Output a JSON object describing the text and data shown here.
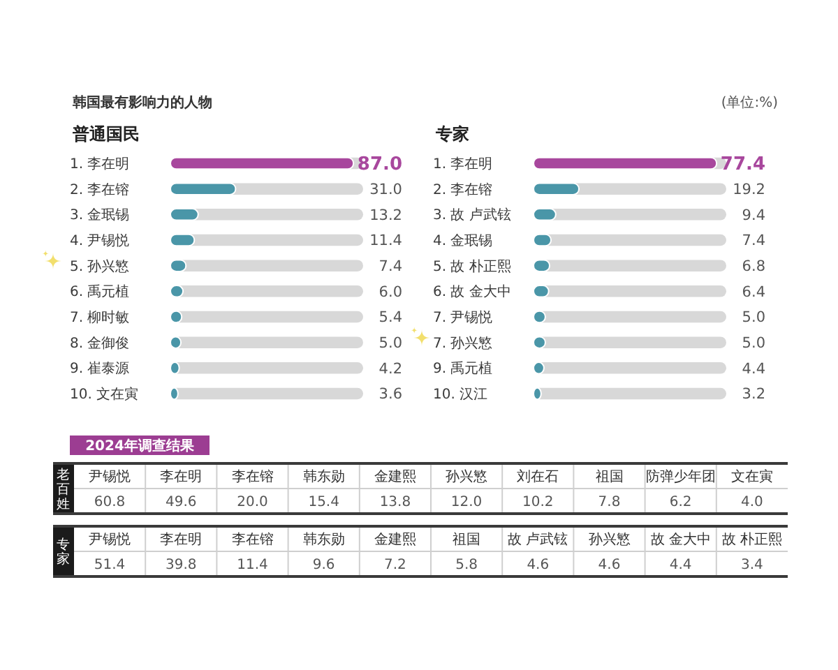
{
  "chart_data": [
    {
      "type": "bar",
      "orientation": "horizontal",
      "title": "韩国最有影响力的人物",
      "subtitle": "普通国民",
      "categories": [
        "1. 李在明",
        "2. 李在镕",
        "3. 金珉锡",
        "4. 尹锡悦",
        "5. 孙兴慜",
        "6. 禹元植",
        "7. 柳时敏",
        "8. 金御俊",
        "9. 崔泰源",
        "10. 文在寅"
      ],
      "values": [
        87.0,
        31.0,
        13.2,
        11.4,
        7.4,
        6.0,
        5.4,
        5.0,
        4.2,
        3.6
      ],
      "value_labels": [
        "87.0",
        "31.0",
        "13.2",
        "11.4",
        "7.4",
        "6.0",
        "5.4",
        "5.0",
        "4.2",
        "3.6"
      ],
      "color": "#4a96a8",
      "colors": [
        "#a8479d",
        "#4a96a8",
        "#4a96a8",
        "#4a96a8",
        "#4a96a8",
        "#4a96a8",
        "#4a96a8",
        "#4a96a8",
        "#4a96a8",
        "#4a96a8"
      ],
      "tick_labels": "y"
    },
    {
      "type": "bar",
      "orientation": "horizontal",
      "title": "专家",
      "annotations": [
        "(单位:%)"
      ],
      "categories": [
        "1. 李在明",
        "2. 李在镕",
        "3. 故 卢武铉",
        "4. 金珉锡",
        "5. 故 朴正熙",
        "6. 故 金大中",
        "7. 尹锡悦",
        "7. 孙兴慜",
        "9. 禹元植",
        "10. 汉江"
      ],
      "values": [
        77.4,
        19.2,
        9.4,
        7.4,
        6.8,
        6.4,
        5.0,
        5.0,
        4.4,
        3.2
      ],
      "value_labels": [
        "77.4",
        "19.2",
        "9.4",
        "7.4",
        "6.8",
        "6.4",
        "5.0",
        "5.0",
        "4.4",
        "3.2"
      ],
      "color": "#4a96a8",
      "colors": [
        "#a8479d",
        "#4a96a8",
        "#4a96a8",
        "#4a96a8",
        "#4a96a8",
        "#4a96a8",
        "#4a96a8",
        "#4a96a8",
        "#4a96a8",
        "#4a96a8"
      ],
      "tick_labels": "y"
    },
    {
      "type": "other",
      "title": "2024年调查结果",
      "ylabel": "老百姓",
      "categories": [
        "尹锡悦",
        "李在明",
        "李在镕",
        "韩东勋",
        "金建熙",
        "孙兴慜",
        "刘在石",
        "祖国",
        "防弹少年团",
        "文在寅"
      ],
      "values": [
        60.8,
        49.6,
        20.0,
        15.4,
        13.8,
        12.0,
        10.2,
        7.8,
        6.2,
        4.0
      ],
      "value_labels": [
        "60.8",
        "49.6",
        "20.0",
        "15.4",
        "13.8",
        "12.0",
        "10.2",
        "7.8",
        "6.2",
        "4.0"
      ]
    },
    {
      "type": "other",
      "ylabel": "专家",
      "categories": [
        "尹锡悦",
        "李在明",
        "李在镕",
        "韩东勋",
        "金建熙",
        "祖国",
        "故 卢武铉",
        "孙兴慜",
        "故 金大中",
        "故 朴正熙"
      ],
      "values": [
        51.4,
        39.8,
        11.4,
        9.6,
        7.2,
        5.8,
        4.6,
        4.6,
        4.4,
        3.4
      ],
      "value_labels": [
        "51.4",
        "39.8",
        "11.4",
        "9.6",
        "7.2",
        "5.8",
        "4.6",
        "4.6",
        "4.4",
        "3.4"
      ]
    }
  ]
}
